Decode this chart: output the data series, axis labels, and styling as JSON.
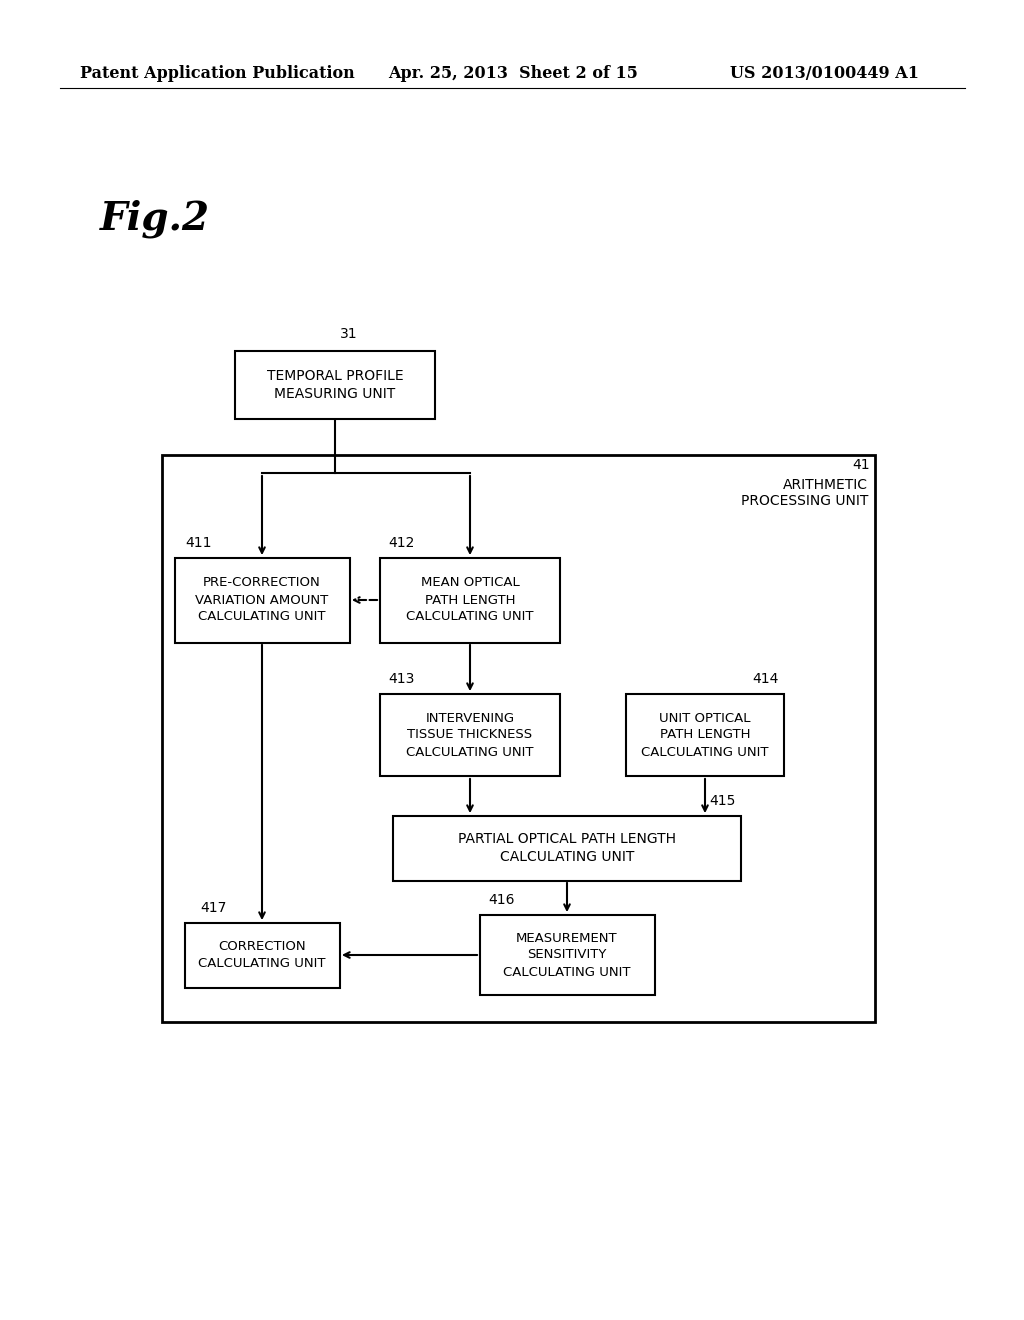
{
  "bg_color": "#ffffff",
  "header_left": "Patent Application Publication",
  "header_mid": "Apr. 25, 2013  Sheet 2 of 15",
  "header_right": "US 2013/0100449 A1",
  "fig_label": "Fig.2",
  "arithmetic_label": "ARITHMETIC\nPROCESSING UNIT",
  "arithmetic_tag": "41",
  "tp_label": "TEMPORAL PROFILE\nMEASURING UNIT",
  "tp_tag": "31",
  "b411_label": "PRE-CORRECTION\nVARIATION AMOUNT\nCALCULATING UNIT",
  "b411_tag": "411",
  "b412_label": "MEAN OPTICAL\nPATH LENGTH\nCALCULATING UNIT",
  "b412_tag": "412",
  "b413_label": "INTERVENING\nTISSUE THICKNESS\nCALCULATING UNIT",
  "b413_tag": "413",
  "b414_label": "UNIT OPTICAL\nPATH LENGTH\nCALCULATING UNIT",
  "b414_tag": "414",
  "b415_label": "PARTIAL OPTICAL PATH LENGTH\nCALCULATING UNIT",
  "b415_tag": "415",
  "b416_label": "MEASUREMENT\nSENSITIVITY\nCALCULATING UNIT",
  "b416_tag": "416",
  "b417_label": "CORRECTION\nCALCULATING UNIT",
  "b417_tag": "417"
}
